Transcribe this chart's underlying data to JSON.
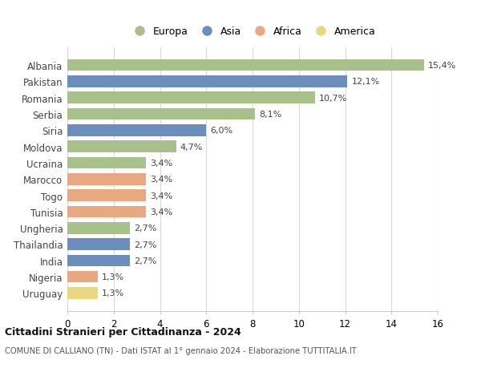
{
  "countries": [
    "Albania",
    "Pakistan",
    "Romania",
    "Serbia",
    "Siria",
    "Moldova",
    "Ucraina",
    "Marocco",
    "Togo",
    "Tunisia",
    "Ungheria",
    "Thailandia",
    "India",
    "Nigeria",
    "Uruguay"
  ],
  "values": [
    15.4,
    12.1,
    10.7,
    8.1,
    6.0,
    4.7,
    3.4,
    3.4,
    3.4,
    3.4,
    2.7,
    2.7,
    2.7,
    1.3,
    1.3
  ],
  "labels": [
    "15,4%",
    "12,1%",
    "10,7%",
    "8,1%",
    "6,0%",
    "4,7%",
    "3,4%",
    "3,4%",
    "3,4%",
    "3,4%",
    "2,7%",
    "2,7%",
    "2,7%",
    "1,3%",
    "1,3%"
  ],
  "continents": [
    "Europa",
    "Asia",
    "Europa",
    "Europa",
    "Asia",
    "Europa",
    "Europa",
    "Africa",
    "Africa",
    "Africa",
    "Europa",
    "Asia",
    "Asia",
    "Africa",
    "America"
  ],
  "colors": {
    "Europa": "#a8c08a",
    "Asia": "#6b8ebd",
    "Africa": "#e8a882",
    "America": "#e8d882"
  },
  "legend_order": [
    "Europa",
    "Asia",
    "Africa",
    "America"
  ],
  "title": "Cittadini Stranieri per Cittadinanza - 2024",
  "subtitle": "COMUNE DI CALLIANO (TN) - Dati ISTAT al 1° gennaio 2024 - Elaborazione TUTTITALIA.IT",
  "xlim": [
    0,
    16
  ],
  "xticks": [
    0,
    2,
    4,
    6,
    8,
    10,
    12,
    14,
    16
  ],
  "bg_color": "#ffffff",
  "grid_color": "#d8d8d8",
  "bar_height": 0.72
}
